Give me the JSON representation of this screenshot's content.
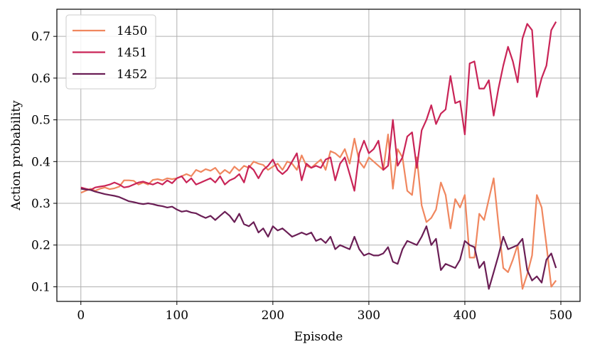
{
  "chart_data": {
    "type": "line",
    "xlabel": "Episode",
    "ylabel": "Action probability",
    "xlim": [
      -25,
      520
    ],
    "ylim": [
      0.065,
      0.765
    ],
    "xticks": [
      0,
      100,
      200,
      300,
      400,
      500
    ],
    "yticks": [
      0.1,
      0.2,
      0.3,
      0.4,
      0.5,
      0.6,
      0.7
    ],
    "xtick_labels": [
      "0",
      "100",
      "200",
      "300",
      "400",
      "500"
    ],
    "ytick_labels": [
      "0.1",
      "0.2",
      "0.3",
      "0.4",
      "0.5",
      "0.6",
      "0.7"
    ],
    "grid": true,
    "legend_position": "top-left",
    "x": [
      0,
      5,
      10,
      15,
      20,
      25,
      30,
      35,
      40,
      45,
      50,
      55,
      60,
      65,
      70,
      75,
      80,
      85,
      90,
      95,
      100,
      105,
      110,
      115,
      120,
      125,
      130,
      135,
      140,
      145,
      150,
      155,
      160,
      165,
      170,
      175,
      180,
      185,
      190,
      195,
      200,
      205,
      210,
      215,
      220,
      225,
      230,
      235,
      240,
      245,
      250,
      255,
      260,
      265,
      270,
      275,
      280,
      285,
      290,
      295,
      300,
      305,
      310,
      315,
      320,
      325,
      330,
      335,
      340,
      345,
      350,
      355,
      360,
      365,
      370,
      375,
      380,
      385,
      390,
      395,
      400,
      405,
      410,
      415,
      420,
      425,
      430,
      435,
      440,
      445,
      450,
      455,
      460,
      465,
      470,
      475,
      480,
      485,
      490,
      495
    ],
    "series": [
      {
        "name": "1450",
        "color": "#f0875f",
        "values": [
          0.325,
          0.33,
          0.335,
          0.33,
          0.335,
          0.338,
          0.334,
          0.336,
          0.34,
          0.355,
          0.355,
          0.354,
          0.345,
          0.35,
          0.345,
          0.356,
          0.358,
          0.355,
          0.36,
          0.358,
          0.36,
          0.365,
          0.37,
          0.365,
          0.38,
          0.375,
          0.382,
          0.378,
          0.385,
          0.37,
          0.38,
          0.372,
          0.388,
          0.378,
          0.39,
          0.385,
          0.4,
          0.395,
          0.392,
          0.38,
          0.388,
          0.395,
          0.38,
          0.4,
          0.395,
          0.38,
          0.415,
          0.39,
          0.385,
          0.395,
          0.405,
          0.38,
          0.425,
          0.42,
          0.41,
          0.43,
          0.395,
          0.455,
          0.4,
          0.385,
          0.41,
          0.4,
          0.39,
          0.38,
          0.465,
          0.335,
          0.43,
          0.41,
          0.33,
          0.32,
          0.41,
          0.295,
          0.255,
          0.265,
          0.285,
          0.35,
          0.32,
          0.24,
          0.31,
          0.29,
          0.32,
          0.17,
          0.17,
          0.275,
          0.26,
          0.31,
          0.36,
          0.25,
          0.145,
          0.135,
          0.165,
          0.2,
          0.095,
          0.13,
          0.175,
          0.32,
          0.29,
          0.2,
          0.1,
          0.115
        ]
      },
      {
        "name": "1451",
        "color": "#c92457",
        "values": [
          0.338,
          0.335,
          0.332,
          0.338,
          0.34,
          0.342,
          0.345,
          0.35,
          0.345,
          0.338,
          0.34,
          0.345,
          0.35,
          0.352,
          0.348,
          0.345,
          0.35,
          0.345,
          0.355,
          0.348,
          0.36,
          0.365,
          0.35,
          0.36,
          0.345,
          0.35,
          0.355,
          0.36,
          0.35,
          0.365,
          0.345,
          0.355,
          0.36,
          0.37,
          0.35,
          0.39,
          0.38,
          0.36,
          0.38,
          0.39,
          0.405,
          0.38,
          0.37,
          0.38,
          0.4,
          0.42,
          0.355,
          0.395,
          0.385,
          0.39,
          0.385,
          0.405,
          0.41,
          0.355,
          0.395,
          0.41,
          0.37,
          0.33,
          0.42,
          0.45,
          0.42,
          0.43,
          0.45,
          0.38,
          0.39,
          0.5,
          0.39,
          0.41,
          0.46,
          0.47,
          0.385,
          0.475,
          0.5,
          0.535,
          0.49,
          0.515,
          0.525,
          0.605,
          0.54,
          0.545,
          0.465,
          0.635,
          0.64,
          0.575,
          0.575,
          0.595,
          0.51,
          0.575,
          0.63,
          0.675,
          0.64,
          0.59,
          0.695,
          0.73,
          0.715,
          0.555,
          0.6,
          0.63,
          0.715,
          0.735
        ]
      },
      {
        "name": "1452",
        "color": "#6a1e55",
        "values": [
          0.335,
          0.333,
          0.332,
          0.328,
          0.325,
          0.322,
          0.32,
          0.318,
          0.315,
          0.31,
          0.305,
          0.303,
          0.3,
          0.298,
          0.3,
          0.298,
          0.295,
          0.293,
          0.29,
          0.292,
          0.285,
          0.28,
          0.282,
          0.278,
          0.276,
          0.27,
          0.265,
          0.27,
          0.26,
          0.27,
          0.28,
          0.27,
          0.255,
          0.275,
          0.25,
          0.245,
          0.255,
          0.23,
          0.24,
          0.22,
          0.245,
          0.235,
          0.24,
          0.23,
          0.22,
          0.225,
          0.23,
          0.225,
          0.23,
          0.21,
          0.215,
          0.205,
          0.22,
          0.19,
          0.2,
          0.195,
          0.19,
          0.22,
          0.19,
          0.175,
          0.18,
          0.175,
          0.175,
          0.18,
          0.195,
          0.16,
          0.155,
          0.19,
          0.21,
          0.205,
          0.2,
          0.22,
          0.245,
          0.2,
          0.215,
          0.14,
          0.155,
          0.15,
          0.145,
          0.165,
          0.21,
          0.2,
          0.195,
          0.145,
          0.16,
          0.095,
          0.135,
          0.175,
          0.22,
          0.19,
          0.195,
          0.2,
          0.215,
          0.14,
          0.115,
          0.125,
          0.11,
          0.165,
          0.18,
          0.145
        ]
      }
    ]
  }
}
